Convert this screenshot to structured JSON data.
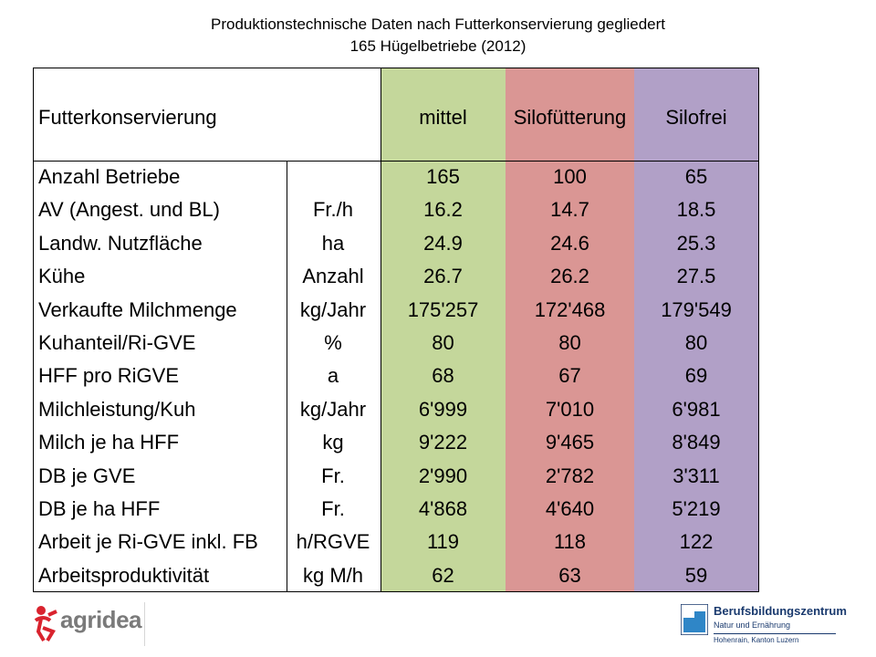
{
  "title": {
    "line1": "Produktionstechnische Daten nach Futterkonservierung gegliedert",
    "line2": "165 Hügelbetriebe (2012)"
  },
  "colors": {
    "mittel": "#c4d79b",
    "silofuetterung": "#da9694",
    "silofrei": "#b1a0c7"
  },
  "table": {
    "header": {
      "label": "Futterkonservierung",
      "col1": "mittel",
      "col2": "Silofütterung",
      "col3": "Silofrei"
    },
    "rows": [
      {
        "label": "Anzahl Betriebe",
        "unit": "",
        "v1": "165",
        "v2": "100",
        "v3": "65"
      },
      {
        "label": "AV (Angest. und BL)",
        "unit": "Fr./h",
        "v1": "16.2",
        "v2": "14.7",
        "v3": "18.5"
      },
      {
        "label": "Landw. Nutzfläche",
        "unit": "ha",
        "v1": "24.9",
        "v2": "24.6",
        "v3": "25.3"
      },
      {
        "label": "Kühe",
        "unit": "Anzahl",
        "v1": "26.7",
        "v2": "26.2",
        "v3": "27.5"
      },
      {
        "label": "Verkaufte Milchmenge",
        "unit": "kg/Jahr",
        "v1": "175'257",
        "v2": "172'468",
        "v3": "179'549"
      },
      {
        "label": "Kuhanteil/Ri-GVE",
        "unit": "%",
        "v1": "80",
        "v2": "80",
        "v3": "80"
      },
      {
        "label": "HFF pro RiGVE",
        "unit": "a",
        "v1": "68",
        "v2": "67",
        "v3": "69"
      },
      {
        "label": "Milchleistung/Kuh",
        "unit": "kg/Jahr",
        "v1": "6'999",
        "v2": "7'010",
        "v3": "6'981"
      },
      {
        "label": "Milch je ha HFF",
        "unit": "kg",
        "v1": "9'222",
        "v2": "9'465",
        "v3": "8'849"
      },
      {
        "label": "DB je GVE",
        "unit": "Fr.",
        "v1": "2'990",
        "v2": "2'782",
        "v3": "3'311"
      },
      {
        "label": "DB je ha HFF",
        "unit": "Fr.",
        "v1": "4'868",
        "v2": "4'640",
        "v3": "5'219"
      },
      {
        "label": "Arbeit je Ri-GVE inkl. FB",
        "unit": "h/RGVE",
        "v1": "119",
        "v2": "118",
        "v3": "122"
      },
      {
        "label": "Arbeitsproduktivität",
        "unit": "kg M/h",
        "v1": "62",
        "v2": "63",
        "v3": "59"
      }
    ]
  },
  "logos": {
    "left": {
      "text": "agridea",
      "icon": "agridea-figure-icon"
    },
    "right": {
      "name": "Berufsbildungszentrum",
      "sub": "Natur und Ernährung",
      "place": "Hohenrain, Kanton Luzern",
      "icon": "bbz-mark-icon"
    }
  }
}
